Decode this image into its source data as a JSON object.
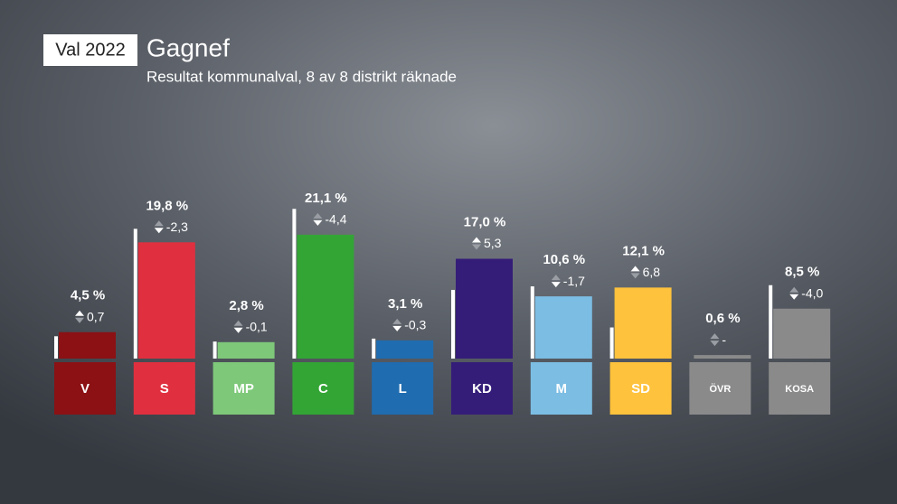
{
  "header": {
    "badge": "Val 2022",
    "title": "Gagnef",
    "subtitle": "Resultat kommunalval, 8 av 8 distrikt räknade"
  },
  "chart_data": {
    "type": "bar",
    "categories": [
      "V",
      "S",
      "MP",
      "C",
      "L",
      "KD",
      "M",
      "SD",
      "ÖVR",
      "KOSA"
    ],
    "values": [
      4.5,
      19.8,
      2.8,
      21.1,
      3.1,
      17.0,
      10.6,
      12.1,
      0.6,
      8.5
    ],
    "value_labels": [
      "4,5 %",
      "19,8 %",
      "2,8 %",
      "21,1 %",
      "3,1 %",
      "17,0 %",
      "10,6 %",
      "12,1 %",
      "0,6 %",
      "8,5 %"
    ],
    "colors": [
      "#8b1114",
      "#e0303f",
      "#7ec87a",
      "#33a535",
      "#1f6cb0",
      "#341d78",
      "#7cbde3",
      "#fec23c",
      "#8a8a8a",
      "#8a8a8a"
    ],
    "previous": [
      3.8,
      22.1,
      2.9,
      25.5,
      3.4,
      11.7,
      12.3,
      5.3,
      null,
      12.5
    ],
    "change": {
      "values": [
        0.7,
        -2.3,
        -0.1,
        -4.4,
        -0.3,
        5.3,
        -1.7,
        6.8,
        null,
        -4.0
      ],
      "value_labels": [
        "0,7",
        "-2,3",
        "-0,1",
        "-4,4",
        "-0,3",
        "5,3",
        "-1,7",
        "6,8",
        "-",
        "-4,0"
      ]
    },
    "ylim": [
      0,
      30
    ]
  }
}
